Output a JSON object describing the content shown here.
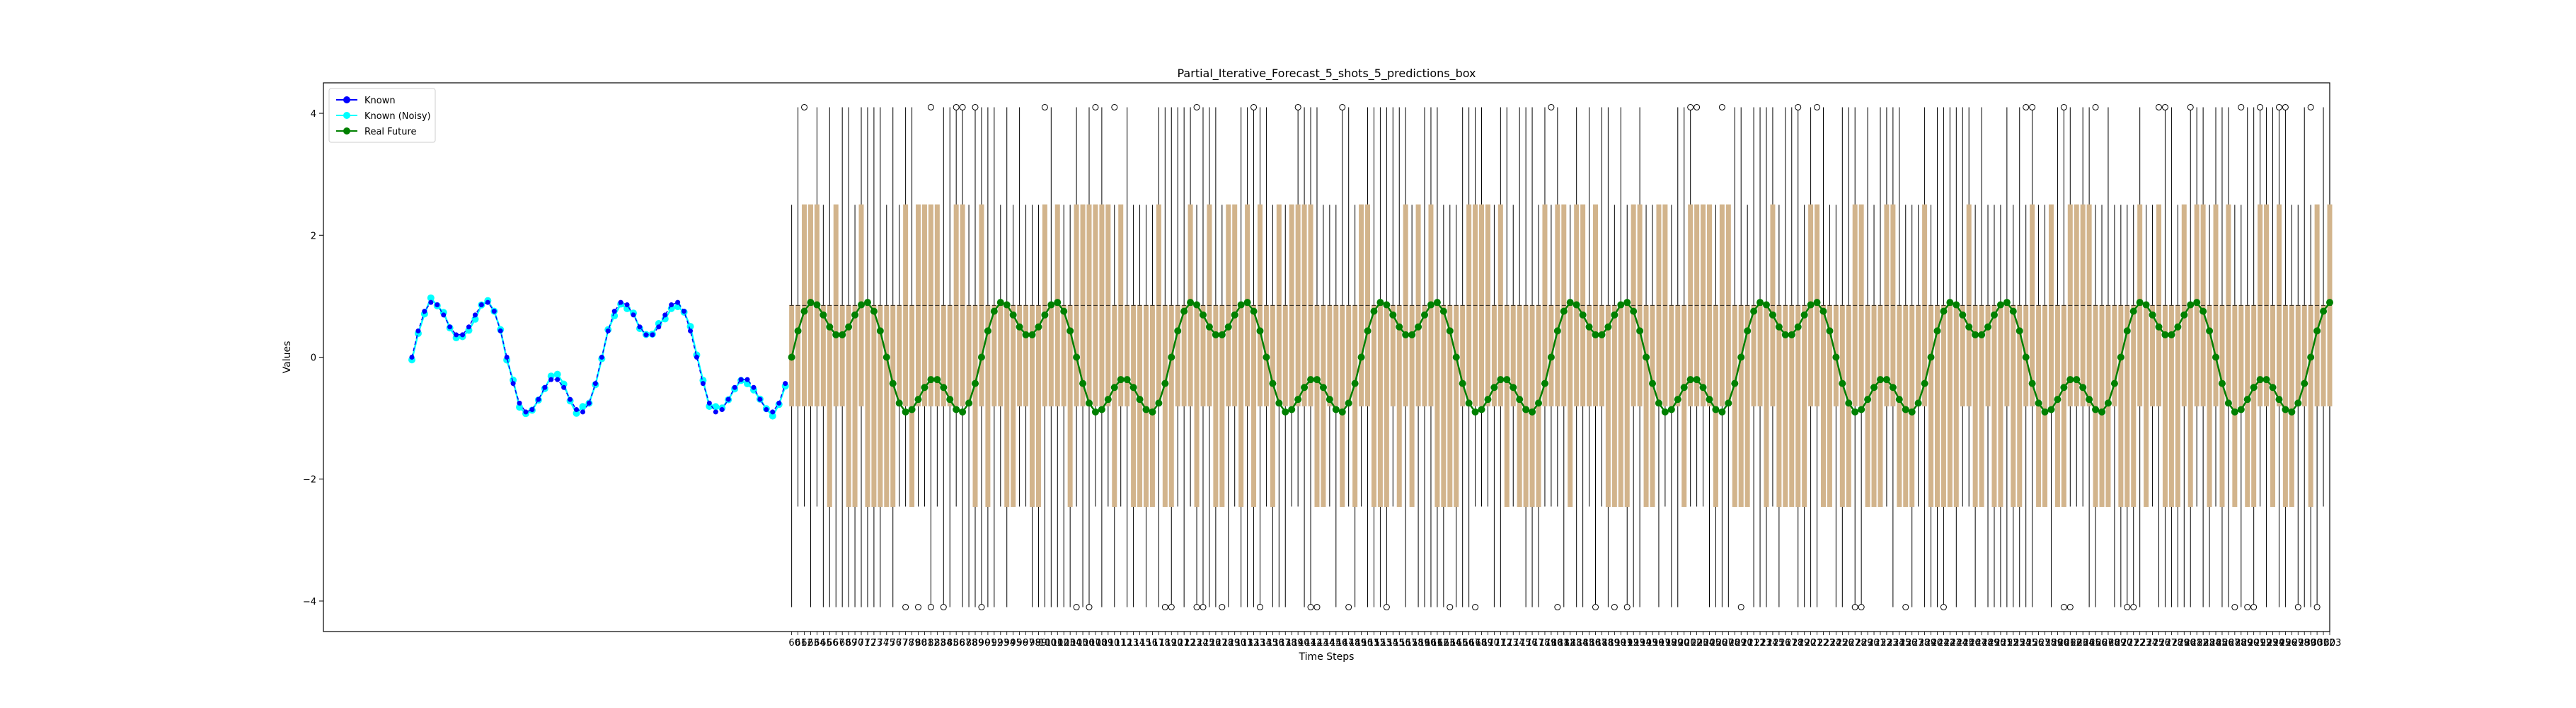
{
  "chart_data": {
    "type": "line",
    "title": "Partial_Iterative_Forecast_5_shots_5_predictions_box",
    "xlabel": "Time Steps",
    "ylabel": "Values",
    "ylim": [
      -4.5,
      4.5
    ],
    "yticks": [
      4,
      2,
      0,
      -2,
      -4
    ],
    "ytick_labels": [
      "4",
      "2",
      "0",
      "−2",
      "−4"
    ],
    "x_known_range": [
      0,
      59
    ],
    "x_future_range": [
      60,
      303
    ],
    "x_tick_count": 244,
    "signal": {
      "description": "sum of two sinusoids",
      "components": [
        {
          "amplitude": 0.8,
          "period": 30
        },
        {
          "amplitude": 0.45,
          "period": 10
        }
      ]
    },
    "box_levels": {
      "whisker_high": 4.1,
      "upper_cap": 2.5,
      "upper_quartile": 0.85,
      "lower_quartile": -0.8,
      "lower_cap": -2.45,
      "whisker_low": -4.1
    },
    "legend": {
      "placement": "top-left",
      "entries": [
        {
          "label": "Known",
          "color": "#0000ff",
          "marker": "circle"
        },
        {
          "label": "Known (Noisy)",
          "color": "#00ffff",
          "marker": "circle"
        },
        {
          "label": "Real Future",
          "color": "#008000",
          "marker": "circle"
        }
      ]
    },
    "series": [
      {
        "name": "Known",
        "color": "#0000ff"
      },
      {
        "name": "Known (Noisy)",
        "color": "#00ffff"
      },
      {
        "name": "Real Future",
        "color": "#008000"
      }
    ],
    "box_color": "#d2b48c"
  }
}
